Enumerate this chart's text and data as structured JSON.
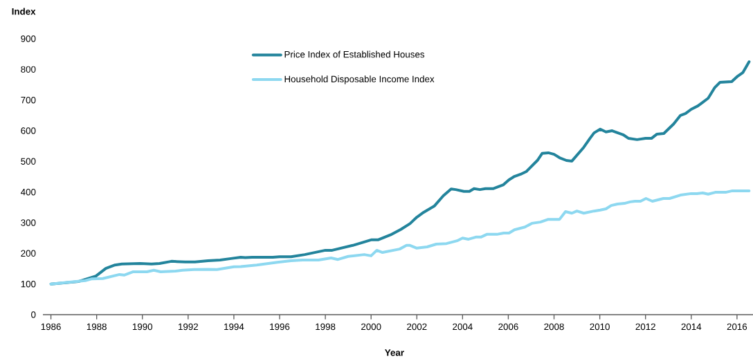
{
  "chart_data": {
    "type": "line",
    "ylabel": "Index",
    "xlabel": "Year",
    "xlim": [
      1985.65,
      2016.7
    ],
    "ylim": [
      0,
      900
    ],
    "xticks": [
      1986,
      1988,
      1990,
      1992,
      1994,
      1996,
      1998,
      2000,
      2002,
      2004,
      2006,
      2008,
      2010,
      2012,
      2014,
      2016
    ],
    "yticks": [
      0,
      100,
      200,
      300,
      400,
      500,
      600,
      700,
      800,
      900
    ],
    "grid": false,
    "legend": "top",
    "marker": "none",
    "line_style": "solid",
    "series": [
      {
        "name": "Price Index of Established Houses",
        "color": "#23849c",
        "x": [
          1986.0,
          1987.2,
          1987.97,
          1988.4,
          1988.8,
          1989.1,
          1989.9,
          1990.4,
          1990.75,
          1991.27,
          1991.87,
          1992.3,
          1992.87,
          1993.4,
          1993.87,
          1994.3,
          1994.5,
          1994.8,
          1995.7,
          1996.0,
          1996.5,
          1997.1,
          1998.0,
          1998.3,
          1999.2,
          1999.6,
          2000.0,
          2000.3,
          2000.9,
          2001.3,
          2001.7,
          2002.0,
          2002.3,
          2002.76,
          2003.16,
          2003.5,
          2003.7,
          2004.06,
          2004.3,
          2004.5,
          2004.76,
          2005.0,
          2005.33,
          2005.79,
          2006.03,
          2006.27,
          2006.54,
          2006.79,
          2007.27,
          2007.48,
          2007.75,
          2008.0,
          2008.24,
          2008.54,
          2008.78,
          2009.3,
          2009.57,
          2009.75,
          2010.02,
          2010.27,
          2010.54,
          2011.02,
          2011.26,
          2011.63,
          2012.0,
          2012.26,
          2012.5,
          2012.8,
          2013.23,
          2013.53,
          2013.75,
          2014.0,
          2014.29,
          2014.74,
          2015.02,
          2015.26,
          2015.77,
          2016.0,
          2016.26,
          2016.53
        ],
        "values": [
          100,
          108,
          126,
          151,
          162,
          165,
          167,
          165,
          167,
          174,
          172,
          172,
          176,
          178,
          183,
          187,
          186,
          187,
          187,
          189,
          189,
          196,
          210,
          210,
          226,
          235,
          244,
          244,
          262,
          278,
          297,
          318,
          334,
          354,
          388,
          410,
          408,
          402,
          402,
          411,
          408,
          411,
          411,
          424,
          440,
          451,
          458,
          467,
          503,
          526,
          528,
          523,
          512,
          503,
          501,
          546,
          575,
          593,
          605,
          596,
          600,
          587,
          575,
          571,
          575,
          575,
          589,
          591,
          622,
          650,
          656,
          670,
          681,
          706,
          740,
          758,
          760,
          776,
          790,
          825
        ]
      },
      {
        "name": "Household Disposable Income Index",
        "color": "#8dd8f0",
        "x": [
          1986.0,
          1986.8,
          1987.5,
          1987.8,
          1988.27,
          1989.0,
          1989.2,
          1989.6,
          1990.2,
          1990.5,
          1990.8,
          1991.45,
          1991.75,
          1992.26,
          1992.87,
          1993.26,
          1994.0,
          1994.3,
          1995.0,
          1995.9,
          1996.5,
          1997.0,
          1997.7,
          1998.25,
          1998.55,
          1999.0,
          1999.7,
          2000.0,
          2000.25,
          2000.5,
          2001.25,
          2001.55,
          2001.7,
          2002.0,
          2002.45,
          2002.85,
          2003.3,
          2003.76,
          2004.0,
          2004.26,
          2004.58,
          2004.8,
          2005.06,
          2005.5,
          2005.8,
          2006.03,
          2006.27,
          2006.73,
          2007.03,
          2007.4,
          2007.75,
          2008.24,
          2008.5,
          2008.78,
          2009.0,
          2009.3,
          2009.75,
          2010.02,
          2010.27,
          2010.5,
          2010.78,
          2011.08,
          2011.33,
          2011.54,
          2011.78,
          2012.02,
          2012.3,
          2012.78,
          2013.05,
          2013.53,
          2014.0,
          2014.25,
          2014.5,
          2014.74,
          2015.05,
          2015.5,
          2015.8,
          2016.17,
          2016.53
        ],
        "values": [
          100,
          106,
          111,
          117,
          118,
          131,
          129,
          140,
          140,
          145,
          140,
          142,
          145,
          147,
          148,
          147,
          156,
          157,
          162,
          171,
          176,
          178,
          178,
          185,
          180,
          190,
          196,
          192,
          210,
          203,
          214,
          226,
          226,
          217,
          221,
          230,
          232,
          241,
          250,
          246,
          253,
          253,
          262,
          262,
          266,
          266,
          277,
          286,
          298,
          302,
          311,
          311,
          336,
          331,
          338,
          331,
          338,
          341,
          345,
          356,
          361,
          363,
          368,
          370,
          370,
          379,
          370,
          379,
          379,
          390,
          395,
          395,
          397,
          393,
          399,
          399,
          404,
          404,
          404
        ]
      }
    ]
  }
}
